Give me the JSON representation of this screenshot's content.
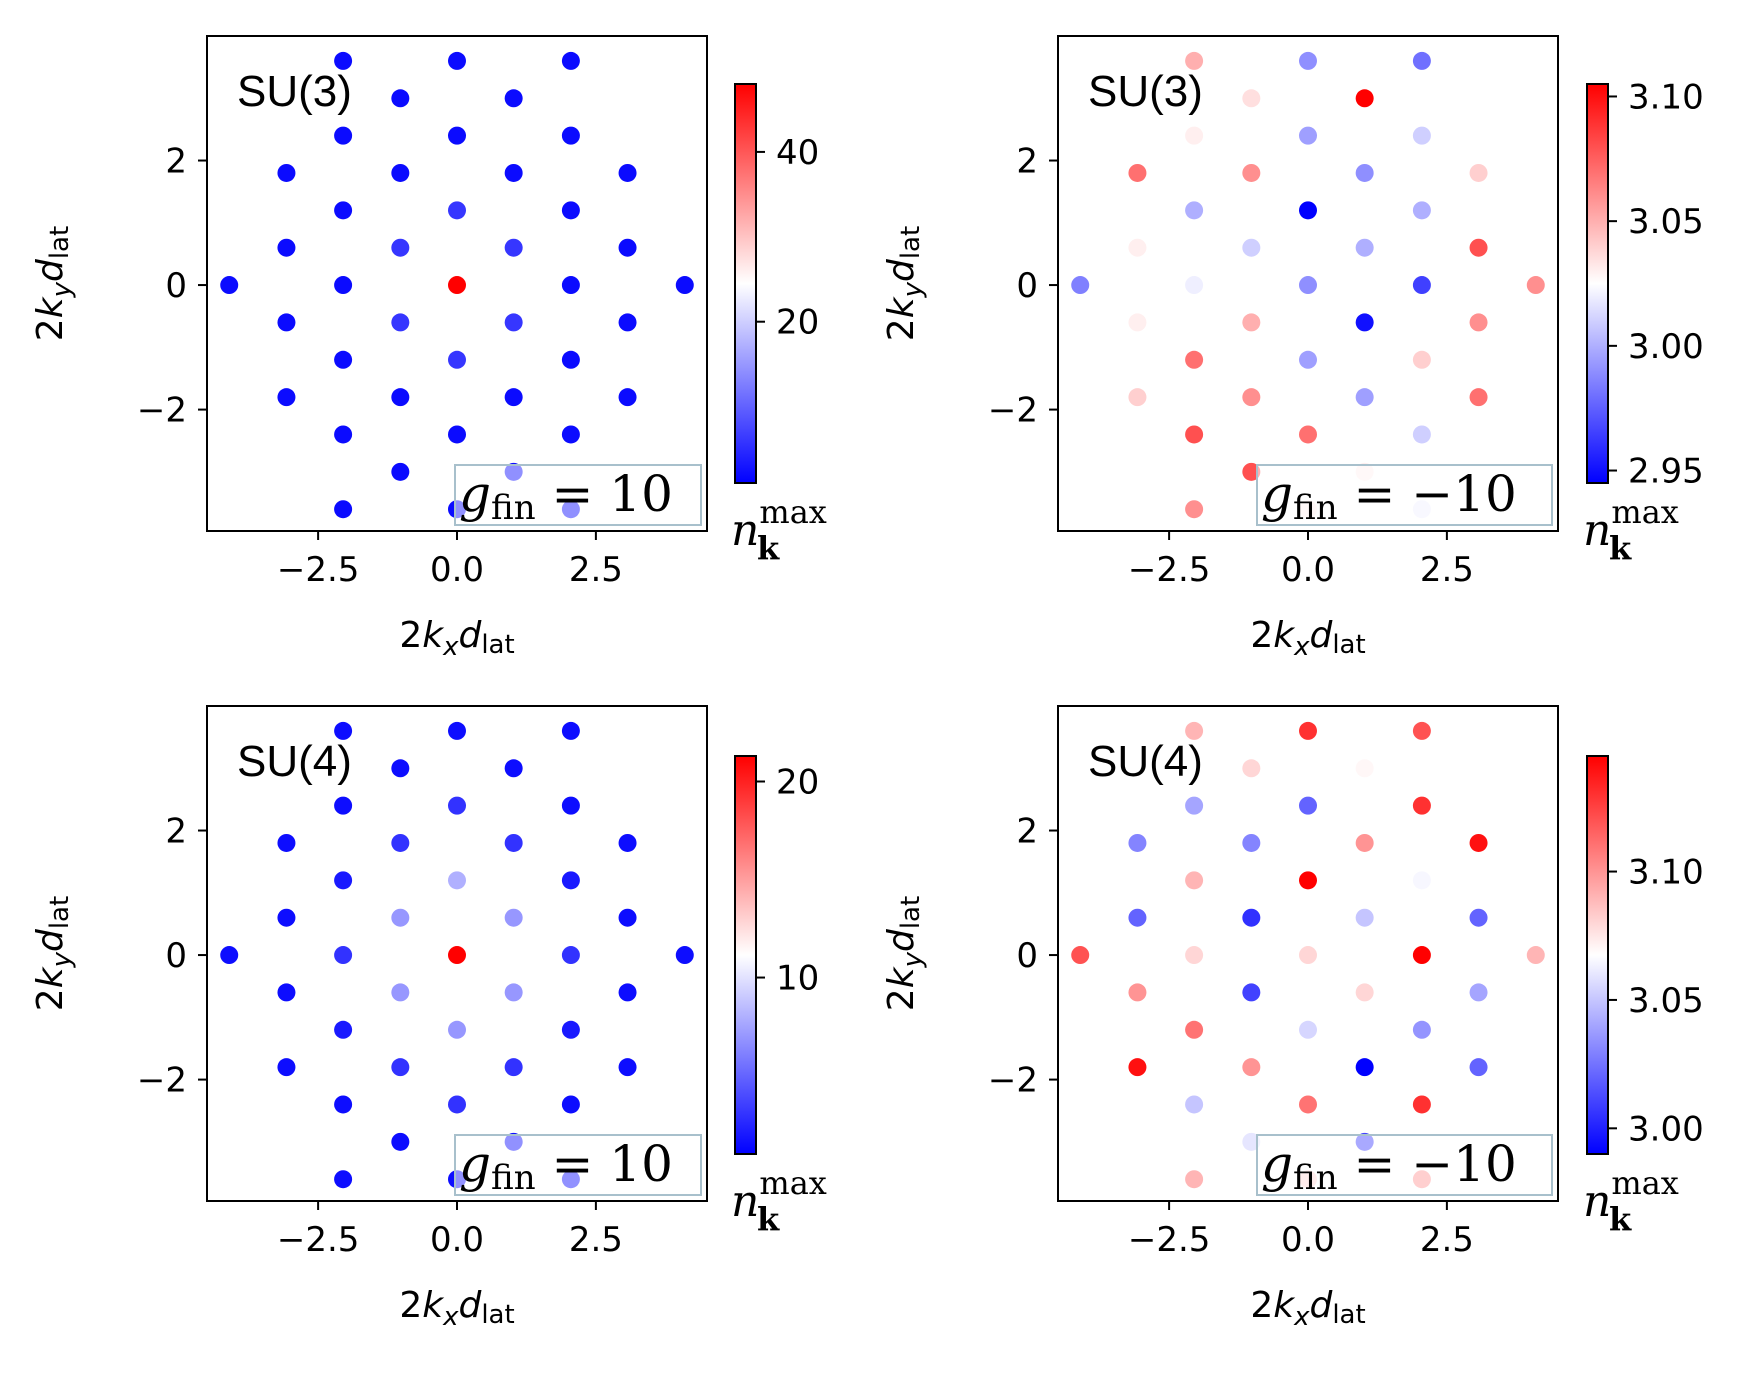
{
  "colors": {
    "low": "#0000ff",
    "mid": "#ffffff",
    "high": "#ff0000",
    "annot_border": "#a8c0cc"
  },
  "chart_data": [
    {
      "type": "scatter",
      "title": "SU(3)",
      "annotation": {
        "symbol": "g",
        "sub": "fin",
        "rest": " = 10"
      },
      "xlabel": {
        "a": "2",
        "b": "k",
        "c": "x",
        "d": "d",
        "e": "lat"
      },
      "ylabel": {
        "a": "2",
        "b": "k",
        "c": "y",
        "d": "d",
        "e": "lat"
      },
      "xlim": [
        -4.5,
        4.5
      ],
      "ylim": [
        -3.95,
        4.0
      ],
      "xticks": [
        -2.5,
        0.0,
        2.5
      ],
      "xtick_labels": [
        "−2.5",
        "0.0",
        "2.5"
      ],
      "yticks": [
        -2,
        0,
        2
      ],
      "ytick_labels": [
        "−2",
        "0",
        "2"
      ],
      "colorbar": {
        "min": 1.0,
        "max": 48.0,
        "ticks": [
          20,
          40
        ],
        "tick_labels": [
          "20",
          "40"
        ],
        "label_base": "n",
        "label_sup": "max",
        "label_sub": "k"
      },
      "points": [
        {
          "x": -2.05,
          "y": 3.6,
          "v": 2
        },
        {
          "x": 0.0,
          "y": 3.6,
          "v": 2
        },
        {
          "x": 2.05,
          "y": 3.6,
          "v": 2
        },
        {
          "x": -1.02,
          "y": 3.0,
          "v": 2
        },
        {
          "x": 1.02,
          "y": 3.0,
          "v": 2
        },
        {
          "x": -2.05,
          "y": 2.4,
          "v": 2
        },
        {
          "x": 0.0,
          "y": 2.4,
          "v": 2
        },
        {
          "x": 2.05,
          "y": 2.4,
          "v": 2
        },
        {
          "x": -3.07,
          "y": 1.8,
          "v": 2
        },
        {
          "x": -1.02,
          "y": 1.8,
          "v": 2
        },
        {
          "x": 1.02,
          "y": 1.8,
          "v": 2
        },
        {
          "x": 3.07,
          "y": 1.8,
          "v": 2
        },
        {
          "x": -2.05,
          "y": 1.2,
          "v": 2
        },
        {
          "x": 0.0,
          "y": 1.2,
          "v": 6
        },
        {
          "x": 2.05,
          "y": 1.2,
          "v": 2
        },
        {
          "x": -3.07,
          "y": 0.6,
          "v": 2
        },
        {
          "x": -1.02,
          "y": 0.6,
          "v": 6
        },
        {
          "x": 1.02,
          "y": 0.6,
          "v": 6
        },
        {
          "x": 3.07,
          "y": 0.6,
          "v": 2
        },
        {
          "x": -4.1,
          "y": 0.0,
          "v": 2
        },
        {
          "x": -2.05,
          "y": 0.0,
          "v": 2
        },
        {
          "x": 0.0,
          "y": 0.0,
          "v": 48
        },
        {
          "x": 2.05,
          "y": 0.0,
          "v": 2
        },
        {
          "x": 4.1,
          "y": 0.0,
          "v": 2
        },
        {
          "x": -3.07,
          "y": -0.6,
          "v": 2
        },
        {
          "x": -1.02,
          "y": -0.6,
          "v": 6
        },
        {
          "x": 1.02,
          "y": -0.6,
          "v": 6
        },
        {
          "x": 3.07,
          "y": -0.6,
          "v": 2
        },
        {
          "x": -2.05,
          "y": -1.2,
          "v": 2
        },
        {
          "x": 0.0,
          "y": -1.2,
          "v": 6
        },
        {
          "x": 2.05,
          "y": -1.2,
          "v": 2
        },
        {
          "x": -3.07,
          "y": -1.8,
          "v": 2
        },
        {
          "x": -1.02,
          "y": -1.8,
          "v": 2
        },
        {
          "x": 1.02,
          "y": -1.8,
          "v": 2
        },
        {
          "x": 3.07,
          "y": -1.8,
          "v": 2
        },
        {
          "x": -2.05,
          "y": -2.4,
          "v": 2
        },
        {
          "x": 0.0,
          "y": -2.4,
          "v": 2
        },
        {
          "x": 2.05,
          "y": -2.4,
          "v": 2
        },
        {
          "x": -1.02,
          "y": -3.0,
          "v": 2
        },
        {
          "x": 1.02,
          "y": -3.0,
          "v": 2
        },
        {
          "x": -2.05,
          "y": -3.6,
          "v": 2
        },
        {
          "x": 0.0,
          "y": -3.6,
          "v": 2
        },
        {
          "x": 2.05,
          "y": -3.6,
          "v": 2
        }
      ]
    },
    {
      "type": "scatter",
      "title": "SU(3)",
      "annotation": {
        "symbol": "g",
        "sub": "fin",
        "rest": " = −10"
      },
      "xlabel": {
        "a": "2",
        "b": "k",
        "c": "x",
        "d": "d",
        "e": "lat"
      },
      "ylabel": {
        "a": "2",
        "b": "k",
        "c": "y",
        "d": "d",
        "e": "lat"
      },
      "xlim": [
        -4.5,
        4.5
      ],
      "ylim": [
        -3.95,
        4.0
      ],
      "xticks": [
        -2.5,
        0.0,
        2.5
      ],
      "xtick_labels": [
        "−2.5",
        "0.0",
        "2.5"
      ],
      "yticks": [
        -2,
        0,
        2
      ],
      "ytick_labels": [
        "−2",
        "0",
        "2"
      ],
      "colorbar": {
        "min": 2.945,
        "max": 3.105,
        "ticks": [
          2.95,
          3.0,
          3.05,
          3.1
        ],
        "tick_labels": [
          "2.95",
          "3.00",
          "3.05",
          "3.10"
        ],
        "label_base": "n",
        "label_sup": "max",
        "label_sub": "k"
      },
      "points": [
        {
          "x": -2.05,
          "y": 3.6,
          "v": 3.05
        },
        {
          "x": 0.0,
          "y": 3.6,
          "v": 2.99
        },
        {
          "x": 2.05,
          "y": 3.6,
          "v": 2.98
        },
        {
          "x": -1.02,
          "y": 3.0,
          "v": 3.035
        },
        {
          "x": 1.02,
          "y": 3.0,
          "v": 3.105
        },
        {
          "x": -2.05,
          "y": 2.4,
          "v": 3.03
        },
        {
          "x": 0.0,
          "y": 2.4,
          "v": 2.995
        },
        {
          "x": 2.05,
          "y": 2.4,
          "v": 3.01
        },
        {
          "x": -3.07,
          "y": 1.8,
          "v": 3.07
        },
        {
          "x": -1.02,
          "y": 1.8,
          "v": 3.06
        },
        {
          "x": 1.02,
          "y": 1.8,
          "v": 2.99
        },
        {
          "x": 3.07,
          "y": 1.8,
          "v": 3.04
        },
        {
          "x": -2.05,
          "y": 1.2,
          "v": 3.0
        },
        {
          "x": 0.0,
          "y": 1.2,
          "v": 2.945
        },
        {
          "x": 2.05,
          "y": 1.2,
          "v": 3.0
        },
        {
          "x": -3.07,
          "y": 0.6,
          "v": 3.03
        },
        {
          "x": -1.02,
          "y": 0.6,
          "v": 3.01
        },
        {
          "x": 1.02,
          "y": 0.6,
          "v": 3.0
        },
        {
          "x": 3.07,
          "y": 0.6,
          "v": 3.08
        },
        {
          "x": -4.1,
          "y": 0.0,
          "v": 2.985
        },
        {
          "x": -2.05,
          "y": 0.0,
          "v": 3.02
        },
        {
          "x": 0.0,
          "y": 0.0,
          "v": 2.99
        },
        {
          "x": 2.05,
          "y": 0.0,
          "v": 2.965
        },
        {
          "x": 4.1,
          "y": 0.0,
          "v": 3.06
        },
        {
          "x": -3.07,
          "y": -0.6,
          "v": 3.03
        },
        {
          "x": -1.02,
          "y": -0.6,
          "v": 3.05
        },
        {
          "x": 1.02,
          "y": -0.6,
          "v": 2.95
        },
        {
          "x": 3.07,
          "y": -0.6,
          "v": 3.06
        },
        {
          "x": -2.05,
          "y": -1.2,
          "v": 3.07
        },
        {
          "x": 0.0,
          "y": -1.2,
          "v": 2.995
        },
        {
          "x": 2.05,
          "y": -1.2,
          "v": 3.04
        },
        {
          "x": -3.07,
          "y": -1.8,
          "v": 3.04
        },
        {
          "x": -1.02,
          "y": -1.8,
          "v": 3.06
        },
        {
          "x": 1.02,
          "y": -1.8,
          "v": 2.995
        },
        {
          "x": 3.07,
          "y": -1.8,
          "v": 3.07
        },
        {
          "x": -2.05,
          "y": -2.4,
          "v": 3.08
        },
        {
          "x": 0.0,
          "y": -2.4,
          "v": 3.07
        },
        {
          "x": 2.05,
          "y": -2.4,
          "v": 3.01
        },
        {
          "x": -1.02,
          "y": -3.0,
          "v": 3.08
        },
        {
          "x": 1.02,
          "y": -3.0,
          "v": 3.03
        },
        {
          "x": -2.05,
          "y": -3.6,
          "v": 3.06
        },
        {
          "x": 0.0,
          "y": -3.6,
          "v": 3.03
        },
        {
          "x": 2.05,
          "y": -3.6,
          "v": 3.02
        }
      ]
    },
    {
      "type": "scatter",
      "title": "SU(4)",
      "annotation": {
        "symbol": "g",
        "sub": "fin",
        "rest": " = 10"
      },
      "xlabel": {
        "a": "2",
        "b": "k",
        "c": "x",
        "d": "d",
        "e": "lat"
      },
      "ylabel": {
        "a": "2",
        "b": "k",
        "c": "y",
        "d": "d",
        "e": "lat"
      },
      "xlim": [
        -4.5,
        4.5
      ],
      "ylim": [
        -3.95,
        4.0
      ],
      "xticks": [
        -2.5,
        0.0,
        2.5
      ],
      "xtick_labels": [
        "−2.5",
        "0.0",
        "2.5"
      ],
      "yticks": [
        -2,
        0,
        2
      ],
      "ytick_labels": [
        "−2",
        "0",
        "2"
      ],
      "colorbar": {
        "min": 1.0,
        "max": 21.3,
        "ticks": [
          10,
          20
        ],
        "tick_labels": [
          "10",
          "20"
        ],
        "label_base": "n",
        "label_sup": "max",
        "label_sub": "k"
      },
      "points": [
        {
          "x": -2.05,
          "y": 3.6,
          "v": 1.5
        },
        {
          "x": 0.0,
          "y": 3.6,
          "v": 1.5
        },
        {
          "x": 2.05,
          "y": 3.6,
          "v": 1.5
        },
        {
          "x": -1.02,
          "y": 3.0,
          "v": 1.5
        },
        {
          "x": 1.02,
          "y": 3.0,
          "v": 1.5
        },
        {
          "x": -2.05,
          "y": 2.4,
          "v": 1.5
        },
        {
          "x": 0.0,
          "y": 2.4,
          "v": 3
        },
        {
          "x": 2.05,
          "y": 2.4,
          "v": 1.5
        },
        {
          "x": -3.07,
          "y": 1.8,
          "v": 1.5
        },
        {
          "x": -1.02,
          "y": 1.8,
          "v": 3
        },
        {
          "x": 1.02,
          "y": 1.8,
          "v": 3
        },
        {
          "x": 3.07,
          "y": 1.8,
          "v": 1.5
        },
        {
          "x": -2.05,
          "y": 1.2,
          "v": 2
        },
        {
          "x": 0.0,
          "y": 1.2,
          "v": 8
        },
        {
          "x": 2.05,
          "y": 1.2,
          "v": 2
        },
        {
          "x": -3.07,
          "y": 0.6,
          "v": 1.5
        },
        {
          "x": -1.02,
          "y": 0.6,
          "v": 7
        },
        {
          "x": 1.02,
          "y": 0.6,
          "v": 7
        },
        {
          "x": 3.07,
          "y": 0.6,
          "v": 1.5
        },
        {
          "x": -4.1,
          "y": 0.0,
          "v": 1.5
        },
        {
          "x": -2.05,
          "y": 0.0,
          "v": 3
        },
        {
          "x": 0.0,
          "y": 0.0,
          "v": 21.3
        },
        {
          "x": 2.05,
          "y": 0.0,
          "v": 3
        },
        {
          "x": 4.1,
          "y": 0.0,
          "v": 1.5
        },
        {
          "x": -3.07,
          "y": -0.6,
          "v": 1.5
        },
        {
          "x": -1.02,
          "y": -0.6,
          "v": 7
        },
        {
          "x": 1.02,
          "y": -0.6,
          "v": 7
        },
        {
          "x": 3.07,
          "y": -0.6,
          "v": 1.5
        },
        {
          "x": -2.05,
          "y": -1.2,
          "v": 2
        },
        {
          "x": 0.0,
          "y": -1.2,
          "v": 7
        },
        {
          "x": 2.05,
          "y": -1.2,
          "v": 2
        },
        {
          "x": -3.07,
          "y": -1.8,
          "v": 1.5
        },
        {
          "x": -1.02,
          "y": -1.8,
          "v": 3
        },
        {
          "x": 1.02,
          "y": -1.8,
          "v": 3
        },
        {
          "x": 3.07,
          "y": -1.8,
          "v": 1.5
        },
        {
          "x": -2.05,
          "y": -2.4,
          "v": 1.5
        },
        {
          "x": 0.0,
          "y": -2.4,
          "v": 3
        },
        {
          "x": 2.05,
          "y": -2.4,
          "v": 1.5
        },
        {
          "x": -1.02,
          "y": -3.0,
          "v": 1.5
        },
        {
          "x": 1.02,
          "y": -3.0,
          "v": 1.5
        },
        {
          "x": -2.05,
          "y": -3.6,
          "v": 1.5
        },
        {
          "x": 0.0,
          "y": -3.6,
          "v": 1.5
        },
        {
          "x": 2.05,
          "y": -3.6,
          "v": 1.5
        }
      ]
    },
    {
      "type": "scatter",
      "title": "SU(4)",
      "annotation": {
        "symbol": "g",
        "sub": "fin",
        "rest": " = −10"
      },
      "xlabel": {
        "a": "2",
        "b": "k",
        "c": "x",
        "d": "d",
        "e": "lat"
      },
      "ylabel": {
        "a": "2",
        "b": "k",
        "c": "y",
        "d": "d",
        "e": "lat"
      },
      "xlim": [
        -4.5,
        4.5
      ],
      "ylim": [
        -3.95,
        4.0
      ],
      "xticks": [
        -2.5,
        0.0,
        2.5
      ],
      "xtick_labels": [
        "−2.5",
        "0.0",
        "2.5"
      ],
      "yticks": [
        -2,
        0,
        2
      ],
      "ytick_labels": [
        "−2",
        "0",
        "2"
      ],
      "colorbar": {
        "min": 2.99,
        "max": 3.145,
        "ticks": [
          3.0,
          3.05,
          3.1
        ],
        "tick_labels": [
          "3.00",
          "3.05",
          "3.10"
        ],
        "label_base": "n",
        "label_sup": "max",
        "label_sub": "k"
      },
      "points": [
        {
          "x": -2.05,
          "y": 3.6,
          "v": 3.09
        },
        {
          "x": 0.0,
          "y": 3.6,
          "v": 3.13
        },
        {
          "x": 2.05,
          "y": 3.6,
          "v": 3.12
        },
        {
          "x": -1.02,
          "y": 3.0,
          "v": 3.08
        },
        {
          "x": 1.02,
          "y": 3.0,
          "v": 3.07
        },
        {
          "x": -2.05,
          "y": 2.4,
          "v": 3.04
        },
        {
          "x": 0.0,
          "y": 2.4,
          "v": 3.02
        },
        {
          "x": 2.05,
          "y": 2.4,
          "v": 3.13
        },
        {
          "x": -3.07,
          "y": 1.8,
          "v": 3.03
        },
        {
          "x": -1.02,
          "y": 1.8,
          "v": 3.03
        },
        {
          "x": 1.02,
          "y": 1.8,
          "v": 3.1
        },
        {
          "x": 3.07,
          "y": 1.8,
          "v": 3.14
        },
        {
          "x": -2.05,
          "y": 1.2,
          "v": 3.09
        },
        {
          "x": 0.0,
          "y": 1.2,
          "v": 3.145
        },
        {
          "x": 2.05,
          "y": 1.2,
          "v": 3.065
        },
        {
          "x": -3.07,
          "y": 0.6,
          "v": 3.02
        },
        {
          "x": -1.02,
          "y": 0.6,
          "v": 3.005
        },
        {
          "x": 1.02,
          "y": 0.6,
          "v": 3.05
        },
        {
          "x": 3.07,
          "y": 0.6,
          "v": 3.02
        },
        {
          "x": -4.1,
          "y": 0.0,
          "v": 3.12
        },
        {
          "x": -2.05,
          "y": 0.0,
          "v": 3.08
        },
        {
          "x": 0.0,
          "y": 0.0,
          "v": 3.08
        },
        {
          "x": 2.05,
          "y": 0.0,
          "v": 3.145
        },
        {
          "x": 4.1,
          "y": 0.0,
          "v": 3.09
        },
        {
          "x": -3.07,
          "y": -0.6,
          "v": 3.1
        },
        {
          "x": -1.02,
          "y": -0.6,
          "v": 3.01
        },
        {
          "x": 1.02,
          "y": -0.6,
          "v": 3.08
        },
        {
          "x": 3.07,
          "y": -0.6,
          "v": 3.04
        },
        {
          "x": -2.05,
          "y": -1.2,
          "v": 3.11
        },
        {
          "x": 0.0,
          "y": -1.2,
          "v": 3.055
        },
        {
          "x": 2.05,
          "y": -1.2,
          "v": 3.035
        },
        {
          "x": -3.07,
          "y": -1.8,
          "v": 3.14
        },
        {
          "x": -1.02,
          "y": -1.8,
          "v": 3.1
        },
        {
          "x": 1.02,
          "y": -1.8,
          "v": 2.99
        },
        {
          "x": 3.07,
          "y": -1.8,
          "v": 3.02
        },
        {
          "x": -2.05,
          "y": -2.4,
          "v": 3.05
        },
        {
          "x": 0.0,
          "y": -2.4,
          "v": 3.11
        },
        {
          "x": 2.05,
          "y": -2.4,
          "v": 3.13
        },
        {
          "x": -1.02,
          "y": -3.0,
          "v": 3.06
        },
        {
          "x": 1.02,
          "y": -3.0,
          "v": 3.01
        },
        {
          "x": -2.05,
          "y": -3.6,
          "v": 3.09
        },
        {
          "x": 0.0,
          "y": -3.6,
          "v": 3.08
        },
        {
          "x": 2.05,
          "y": -3.6,
          "v": 3.1
        }
      ]
    }
  ]
}
